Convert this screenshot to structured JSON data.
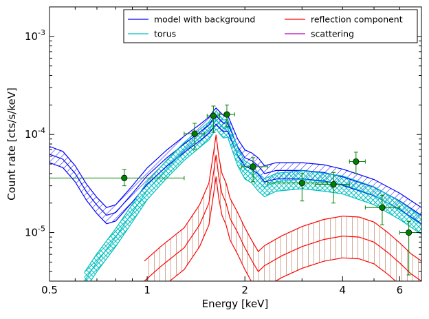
{
  "chart_data": {
    "type": "line",
    "xlabel": "Energy [keV]",
    "ylabel": "Count rate [cts/s/keV]",
    "x_scale": "log",
    "y_scale": "log",
    "xlim": [
      0.5,
      7.0
    ],
    "ylim": [
      3.2e-06,
      0.002
    ],
    "x_ticks": [
      {
        "value": 0.5,
        "label": "0.5"
      },
      {
        "value": 1,
        "label": "1"
      },
      {
        "value": 2,
        "label": "2"
      },
      {
        "value": 4,
        "label": "4"
      },
      {
        "value": 6,
        "label": "6"
      }
    ],
    "y_ticks": [
      {
        "value": 1e-05,
        "base": "10",
        "exp": "-5"
      },
      {
        "value": 0.0001,
        "base": "10",
        "exp": "-4"
      },
      {
        "value": 0.001,
        "base": "10",
        "exp": "-3"
      }
    ],
    "legend": {
      "position": "top-right",
      "entries": [
        {
          "label": "model with background",
          "color": "#0000ff"
        },
        {
          "label": "reflection component",
          "color": "#ff0000"
        },
        {
          "label": "torus",
          "color": "#00bfbf"
        },
        {
          "label": "scattering",
          "color": "#bf00bf"
        }
      ]
    },
    "series": [
      {
        "id": "model",
        "color": "#0000ff",
        "hatch": "diagonal",
        "center": [
          [
            0.5,
            6.3e-05
          ],
          [
            0.55,
            5.6e-05
          ],
          [
            0.6,
            4e-05
          ],
          [
            0.65,
            2.6e-05
          ],
          [
            0.7,
            1.9e-05
          ],
          [
            0.75,
            1.5e-05
          ],
          [
            0.8,
            1.6e-05
          ],
          [
            0.9,
            2.5e-05
          ],
          [
            1.0,
            3.8e-05
          ],
          [
            1.15,
            5.8e-05
          ],
          [
            1.3,
            8e-05
          ],
          [
            1.45,
            0.000105
          ],
          [
            1.55,
            0.000125
          ],
          [
            1.6,
            0.000145
          ],
          [
            1.63,
            0.000155
          ],
          [
            1.68,
            0.00014
          ],
          [
            1.72,
            0.00013
          ],
          [
            1.77,
            0.000132
          ],
          [
            1.82,
            0.000105
          ],
          [
            1.9,
            7.5e-05
          ],
          [
            2.0,
            5.8e-05
          ],
          [
            2.1,
            5.4e-05
          ],
          [
            2.2,
            4.8e-05
          ],
          [
            2.3,
            4e-05
          ],
          [
            2.5,
            4.3e-05
          ],
          [
            3.0,
            4.3e-05
          ],
          [
            3.5,
            4.1e-05
          ],
          [
            4.0,
            3.7e-05
          ],
          [
            5.0,
            2.9e-05
          ],
          [
            6.0,
            2.1e-05
          ],
          [
            7.0,
            1.5e-05
          ]
        ],
        "band_lower_factor": 0.82,
        "band_upper_factor": 1.2
      },
      {
        "id": "torus",
        "color": "#00bfbf",
        "hatch": "crosshatch",
        "center": [
          [
            0.64,
            3.2e-06
          ],
          [
            0.7,
            5e-06
          ],
          [
            0.8,
            9e-06
          ],
          [
            0.9,
            1.6e-05
          ],
          [
            1.0,
            2.7e-05
          ],
          [
            1.15,
            4.5e-05
          ],
          [
            1.3,
            6.8e-05
          ],
          [
            1.45,
            9.2e-05
          ],
          [
            1.55,
            0.00011
          ],
          [
            1.6,
            0.00013
          ],
          [
            1.63,
            0.000142
          ],
          [
            1.68,
            0.000125
          ],
          [
            1.72,
            0.000115
          ],
          [
            1.77,
            0.000118
          ],
          [
            1.82,
            9e-05
          ],
          [
            1.9,
            6e-05
          ],
          [
            2.0,
            4.4e-05
          ],
          [
            2.1,
            4e-05
          ],
          [
            2.2,
            3.3e-05
          ],
          [
            2.3,
            2.9e-05
          ],
          [
            2.5,
            3.3e-05
          ],
          [
            3.0,
            3.5e-05
          ],
          [
            3.5,
            3.3e-05
          ],
          [
            4.0,
            3.1e-05
          ],
          [
            5.0,
            2.4e-05
          ],
          [
            6.0,
            1.7e-05
          ],
          [
            7.0,
            1.2e-05
          ]
        ],
        "band_lower_factor": 0.8,
        "band_upper_factor": 1.22
      },
      {
        "id": "reflection",
        "color": "#ff0000",
        "hatch": "vertical",
        "center": [
          [
            0.98,
            3.2e-06
          ],
          [
            1.1,
            4.5e-06
          ],
          [
            1.3,
            7e-06
          ],
          [
            1.45,
            1.2e-05
          ],
          [
            1.55,
            2e-05
          ],
          [
            1.6,
            4e-05
          ],
          [
            1.63,
            6.2e-05
          ],
          [
            1.66,
            3.8e-05
          ],
          [
            1.7,
            2.5e-05
          ],
          [
            1.75,
            2e-05
          ],
          [
            1.8,
            1.4e-05
          ],
          [
            1.9,
            1e-05
          ],
          [
            2.0,
            7e-06
          ],
          [
            2.1,
            5.2e-06
          ],
          [
            2.2,
            4e-06
          ],
          [
            2.3,
            4.6e-06
          ],
          [
            2.6,
            5.8e-06
          ],
          [
            3.0,
            7.2e-06
          ],
          [
            3.5,
            8.5e-06
          ],
          [
            4.0,
            9.2e-06
          ],
          [
            4.5,
            9e-06
          ],
          [
            5.0,
            8e-06
          ],
          [
            5.5,
            6.3e-06
          ],
          [
            6.0,
            4.9e-06
          ],
          [
            6.5,
            3.8e-06
          ],
          [
            7.0,
            3.2e-06
          ]
        ],
        "band_lower_factor": 0.6,
        "band_upper_factor": 1.6
      }
    ],
    "data_points": {
      "color": "#008000",
      "points": [
        {
          "x": 0.85,
          "y": 3.6e-05,
          "xerr": [
            0.5,
            1.3
          ],
          "yerr": [
            3e-05,
            4.4e-05
          ]
        },
        {
          "x": 1.4,
          "y": 0.000102,
          "xerr": [
            1.3,
            1.5
          ],
          "yerr": [
            7e-05,
            0.00013
          ]
        },
        {
          "x": 1.6,
          "y": 0.000155,
          "xerr": [
            1.53,
            1.67
          ],
          "yerr": [
            0.000105,
            0.000195
          ]
        },
        {
          "x": 1.76,
          "y": 0.00016,
          "xerr": [
            1.67,
            1.86
          ],
          "yerr": [
            0.00012,
            0.0002
          ]
        },
        {
          "x": 2.12,
          "y": 4.7e-05,
          "xerr": [
            1.95,
            2.35
          ],
          "yerr": [
            3.3e-05,
            5.8e-05
          ]
        },
        {
          "x": 3.0,
          "y": 3.2e-05,
          "xerr": [
            2.35,
            3.6
          ],
          "yerr": [
            2.1e-05,
            4e-05
          ]
        },
        {
          "x": 3.75,
          "y": 3.1e-05,
          "xerr": [
            3.3,
            4.2
          ],
          "yerr": [
            2e-05,
            4.1e-05
          ]
        },
        {
          "x": 4.4,
          "y": 5.3e-05,
          "xerr": [
            4.2,
            4.7
          ],
          "yerr": [
            4e-05,
            6.6e-05
          ]
        },
        {
          "x": 5.3,
          "y": 1.8e-05,
          "xerr": [
            4.7,
            6.0
          ],
          "yerr": [
            1.2e-05,
            2.4e-05
          ]
        },
        {
          "x": 6.4,
          "y": 1e-05,
          "xerr": [
            6.0,
            7.0
          ],
          "yerr": [
            3.7e-06,
            1.3e-05
          ]
        }
      ]
    }
  }
}
